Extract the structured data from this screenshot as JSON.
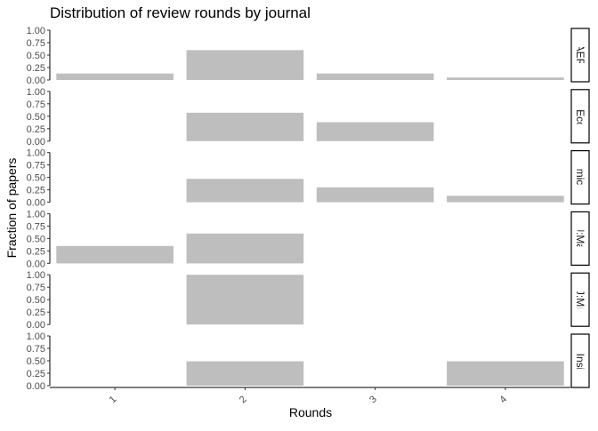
{
  "chart_data": {
    "type": "bar",
    "title": "Distribution of review rounds by journal",
    "xlabel": "Rounds",
    "ylabel": "Fraction of papers",
    "categories": [
      "1",
      "2",
      "3",
      "4"
    ],
    "ylim": [
      0,
      1
    ],
    "y_ticks": [
      "0.00",
      "0.25",
      "0.50",
      "0.75",
      "1.00"
    ],
    "bar_color": "#bebebe",
    "grid": false,
    "legend": "none",
    "facets": [
      {
        "label": "AER",
        "values": [
          0.13,
          0.6,
          0.13,
          0.05
        ]
      },
      {
        "label": "Applied Economics",
        "values": [
          0,
          0.57,
          0.38,
          0
        ]
      },
      {
        "label": "Economic Policy",
        "values": [
          0,
          0.47,
          0.3,
          0.13
        ]
      },
      {
        "label": "AEJ:Macro",
        "values": [
          0.35,
          0.6,
          0,
          0
        ]
      },
      {
        "label": "AEJ:Micro",
        "values": [
          0,
          1.0,
          0,
          0
        ]
      },
      {
        "label": "AERInsights",
        "values": [
          0,
          0.49,
          0,
          0.49
        ]
      }
    ]
  }
}
